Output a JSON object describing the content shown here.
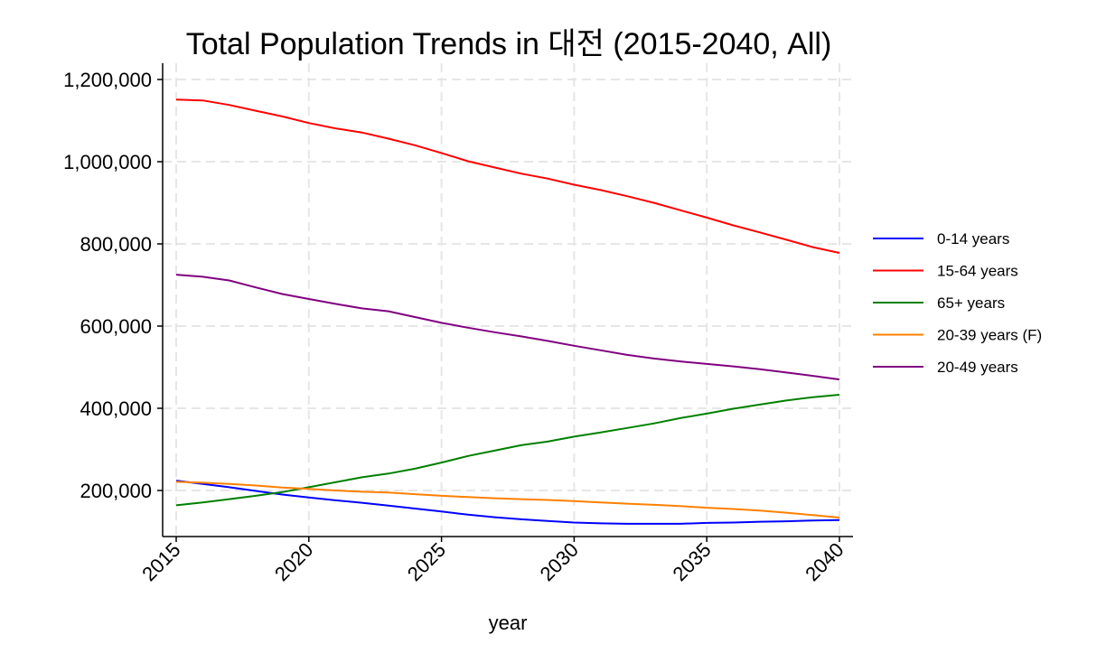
{
  "chart_data": {
    "type": "line",
    "title": "Total Population Trends in 대전 (2015-2040, All)",
    "xlabel": "year",
    "ylabel": "",
    "xlim": [
      2015,
      2040
    ],
    "ylim": [
      110000,
      1240000
    ],
    "grid": true,
    "legend_position": "right",
    "x_ticks": [
      2015,
      2020,
      2025,
      2030,
      2035,
      2040
    ],
    "x_tick_labels": [
      "2015",
      "2020",
      "2025",
      "2030",
      "2035",
      "2040"
    ],
    "y_ticks": [
      200000,
      400000,
      600000,
      800000,
      1000000,
      1200000
    ],
    "y_tick_labels": [
      "200,000",
      "400,000",
      "600,000",
      "800,000",
      "1,000,000",
      "1,200,000"
    ],
    "x": [
      2015,
      2016,
      2017,
      2018,
      2019,
      2020,
      2021,
      2022,
      2023,
      2024,
      2025,
      2026,
      2027,
      2028,
      2029,
      2030,
      2031,
      2032,
      2033,
      2034,
      2035,
      2036,
      2037,
      2038,
      2039,
      2040
    ],
    "series": [
      {
        "name": "0-14 years",
        "color": "#0000ff",
        "values": [
          224000,
          216000,
          208000,
          199000,
          190000,
          183000,
          176000,
          170000,
          163000,
          156000,
          149000,
          141000,
          135000,
          130000,
          126000,
          122000,
          120000,
          119000,
          119000,
          119000,
          121000,
          122000,
          124000,
          125000,
          127000,
          128000
        ]
      },
      {
        "name": "15-64 years",
        "color": "#ff0000",
        "values": [
          1151000,
          1149000,
          1138000,
          1124000,
          1110000,
          1094000,
          1081000,
          1071000,
          1056000,
          1040000,
          1021000,
          1001000,
          986000,
          971000,
          959000,
          944000,
          931000,
          916000,
          900000,
          882000,
          864000,
          845000,
          828000,
          810000,
          792000,
          778000
        ]
      },
      {
        "name": "65+ years",
        "color": "#008000",
        "values": [
          164000,
          171000,
          179000,
          187000,
          196000,
          208000,
          220000,
          232000,
          241000,
          253000,
          268000,
          284000,
          297000,
          310000,
          319000,
          331000,
          341000,
          352000,
          363000,
          376000,
          387000,
          399000,
          409000,
          419000,
          427000,
          433000
        ]
      },
      {
        "name": "20-39 years (F)",
        "color": "#ff8000",
        "values": [
          221000,
          219000,
          216000,
          212000,
          207000,
          204000,
          200000,
          197000,
          195000,
          191000,
          187000,
          184000,
          181000,
          179000,
          177000,
          174000,
          171000,
          168000,
          165000,
          162000,
          158000,
          155000,
          151000,
          146000,
          140000,
          134000
        ]
      },
      {
        "name": "20-49 years",
        "color": "#800080",
        "values": [
          725000,
          720000,
          711000,
          694000,
          678000,
          666000,
          654000,
          643000,
          636000,
          622000,
          608000,
          596000,
          585000,
          575000,
          564000,
          552000,
          541000,
          530000,
          521000,
          514000,
          508000,
          502000,
          495000,
          487000,
          479000,
          470000
        ]
      }
    ]
  }
}
